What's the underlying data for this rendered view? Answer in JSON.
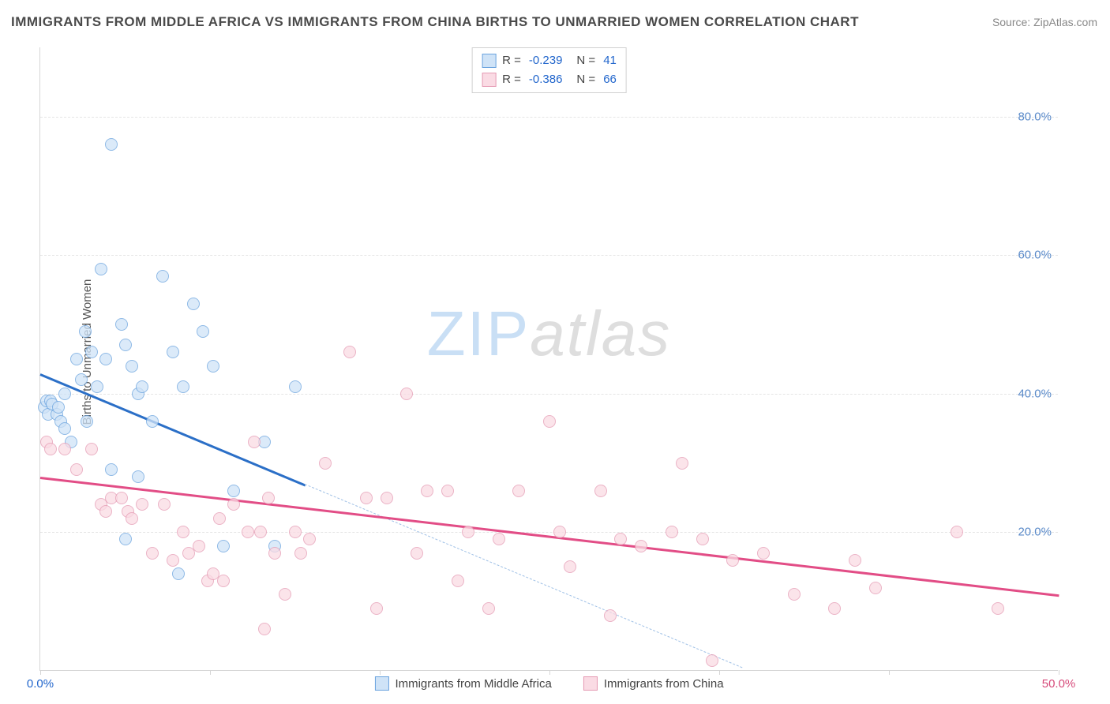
{
  "title": "IMMIGRANTS FROM MIDDLE AFRICA VS IMMIGRANTS FROM CHINA BIRTHS TO UNMARRIED WOMEN CORRELATION CHART",
  "source": "Source: ZipAtlas.com",
  "ylabel": "Births to Unmarried Women",
  "watermark_a": "ZIP",
  "watermark_b": "atlas",
  "chart": {
    "type": "scatter",
    "background_color": "#ffffff",
    "grid_color": "#e5e5e5",
    "axis_color": "#d5d5d5",
    "xlim": [
      0,
      50
    ],
    "ylim": [
      0,
      90
    ],
    "x_ticks": [
      0,
      8.33,
      16.67,
      25,
      33.33,
      41.67,
      50
    ],
    "x_tick_labels": {
      "0": "0.0%",
      "50": "50.0%"
    },
    "y_gridlines": [
      20,
      40,
      60,
      80
    ],
    "y_tick_labels": {
      "20": "20.0%",
      "40": "40.0%",
      "60": "60.0%",
      "80": "80.0%"
    },
    "tick_color_x0": "#2266cc",
    "tick_color_x50": "#d64a7a",
    "tick_color_y": "#5a8ac9",
    "point_radius": 8,
    "point_opacity": 0.75,
    "series": [
      {
        "name": "Immigrants from Middle Africa",
        "fill": "#cfe3f7",
        "stroke": "#6aa3de",
        "trend_color": "#2b6fc7",
        "trend_dash_color": "#9fc0e6",
        "R": -0.239,
        "N": 41,
        "trend": {
          "x1": 0,
          "y1": 43,
          "x2": 13,
          "y2": 27,
          "x2_dash": 34.5,
          "y2_dash": 0.5
        },
        "points": [
          [
            0.2,
            38
          ],
          [
            0.3,
            39
          ],
          [
            0.4,
            37
          ],
          [
            0.5,
            39
          ],
          [
            0.6,
            38.5
          ],
          [
            0.8,
            37
          ],
          [
            0.9,
            38
          ],
          [
            1.0,
            36
          ],
          [
            1.2,
            40
          ],
          [
            1.2,
            35
          ],
          [
            1.5,
            33
          ],
          [
            1.8,
            45
          ],
          [
            2.0,
            42
          ],
          [
            2.2,
            49
          ],
          [
            2.5,
            46
          ],
          [
            2.3,
            36
          ],
          [
            2.8,
            41
          ],
          [
            3.0,
            58
          ],
          [
            3.2,
            45
          ],
          [
            3.5,
            76
          ],
          [
            4.0,
            50
          ],
          [
            4.2,
            47
          ],
          [
            4.5,
            44
          ],
          [
            4.8,
            40
          ],
          [
            5.0,
            41
          ],
          [
            5.5,
            36
          ],
          [
            6.0,
            57
          ],
          [
            6.5,
            46
          ],
          [
            7.0,
            41
          ],
          [
            7.5,
            53
          ],
          [
            8.0,
            49
          ],
          [
            8.5,
            44
          ],
          [
            9.5,
            26
          ],
          [
            3.5,
            29
          ],
          [
            4.2,
            19
          ],
          [
            4.8,
            28
          ],
          [
            6.8,
            14
          ],
          [
            9.0,
            18
          ],
          [
            11.0,
            33
          ],
          [
            11.5,
            18
          ],
          [
            12.5,
            41
          ]
        ]
      },
      {
        "name": "Immigrants from China",
        "fill": "#fadbe4",
        "stroke": "#e59ab3",
        "trend_color": "#e24d86",
        "R": -0.386,
        "N": 66,
        "trend": {
          "x1": 0,
          "y1": 28,
          "x2": 50,
          "y2": 11
        },
        "points": [
          [
            0.3,
            33
          ],
          [
            0.5,
            32
          ],
          [
            1.2,
            32
          ],
          [
            1.8,
            29
          ],
          [
            2.5,
            32
          ],
          [
            3.0,
            24
          ],
          [
            3.2,
            23
          ],
          [
            3.5,
            25
          ],
          [
            4.0,
            25
          ],
          [
            4.3,
            23
          ],
          [
            4.5,
            22
          ],
          [
            5.0,
            24
          ],
          [
            5.5,
            17
          ],
          [
            6.1,
            24
          ],
          [
            6.5,
            16
          ],
          [
            7.0,
            20
          ],
          [
            7.3,
            17
          ],
          [
            7.8,
            18
          ],
          [
            8.2,
            13
          ],
          [
            8.5,
            14
          ],
          [
            8.8,
            22
          ],
          [
            9.0,
            13
          ],
          [
            9.5,
            24
          ],
          [
            10.2,
            20
          ],
          [
            10.5,
            33
          ],
          [
            10.8,
            20
          ],
          [
            11.0,
            6
          ],
          [
            11.2,
            25
          ],
          [
            11.5,
            17
          ],
          [
            12.0,
            11
          ],
          [
            12.5,
            20
          ],
          [
            12.8,
            17
          ],
          [
            13.2,
            19
          ],
          [
            14.0,
            30
          ],
          [
            15.2,
            46
          ],
          [
            16.0,
            25
          ],
          [
            16.5,
            9
          ],
          [
            17.0,
            25
          ],
          [
            18.0,
            40
          ],
          [
            18.5,
            17
          ],
          [
            19.0,
            26
          ],
          [
            20.0,
            26
          ],
          [
            20.5,
            13
          ],
          [
            21.0,
            20
          ],
          [
            22.0,
            9
          ],
          [
            22.5,
            19
          ],
          [
            23.5,
            26
          ],
          [
            25.0,
            36
          ],
          [
            25.5,
            20
          ],
          [
            26.0,
            15
          ],
          [
            27.5,
            26
          ],
          [
            28.0,
            8
          ],
          [
            28.5,
            19
          ],
          [
            29.5,
            18
          ],
          [
            31.0,
            20
          ],
          [
            31.5,
            30
          ],
          [
            32.5,
            19
          ],
          [
            33.0,
            1.5
          ],
          [
            34.0,
            16
          ],
          [
            35.5,
            17
          ],
          [
            37.0,
            11
          ],
          [
            39.0,
            9
          ],
          [
            40.0,
            16
          ],
          [
            41.0,
            12
          ],
          [
            45.0,
            20
          ],
          [
            47.0,
            9
          ]
        ]
      }
    ],
    "legend": [
      {
        "label": "Immigrants from Middle Africa",
        "fill": "#cfe3f7",
        "stroke": "#6aa3de"
      },
      {
        "label": "Immigrants from China",
        "fill": "#fadbe4",
        "stroke": "#e59ab3"
      }
    ]
  }
}
